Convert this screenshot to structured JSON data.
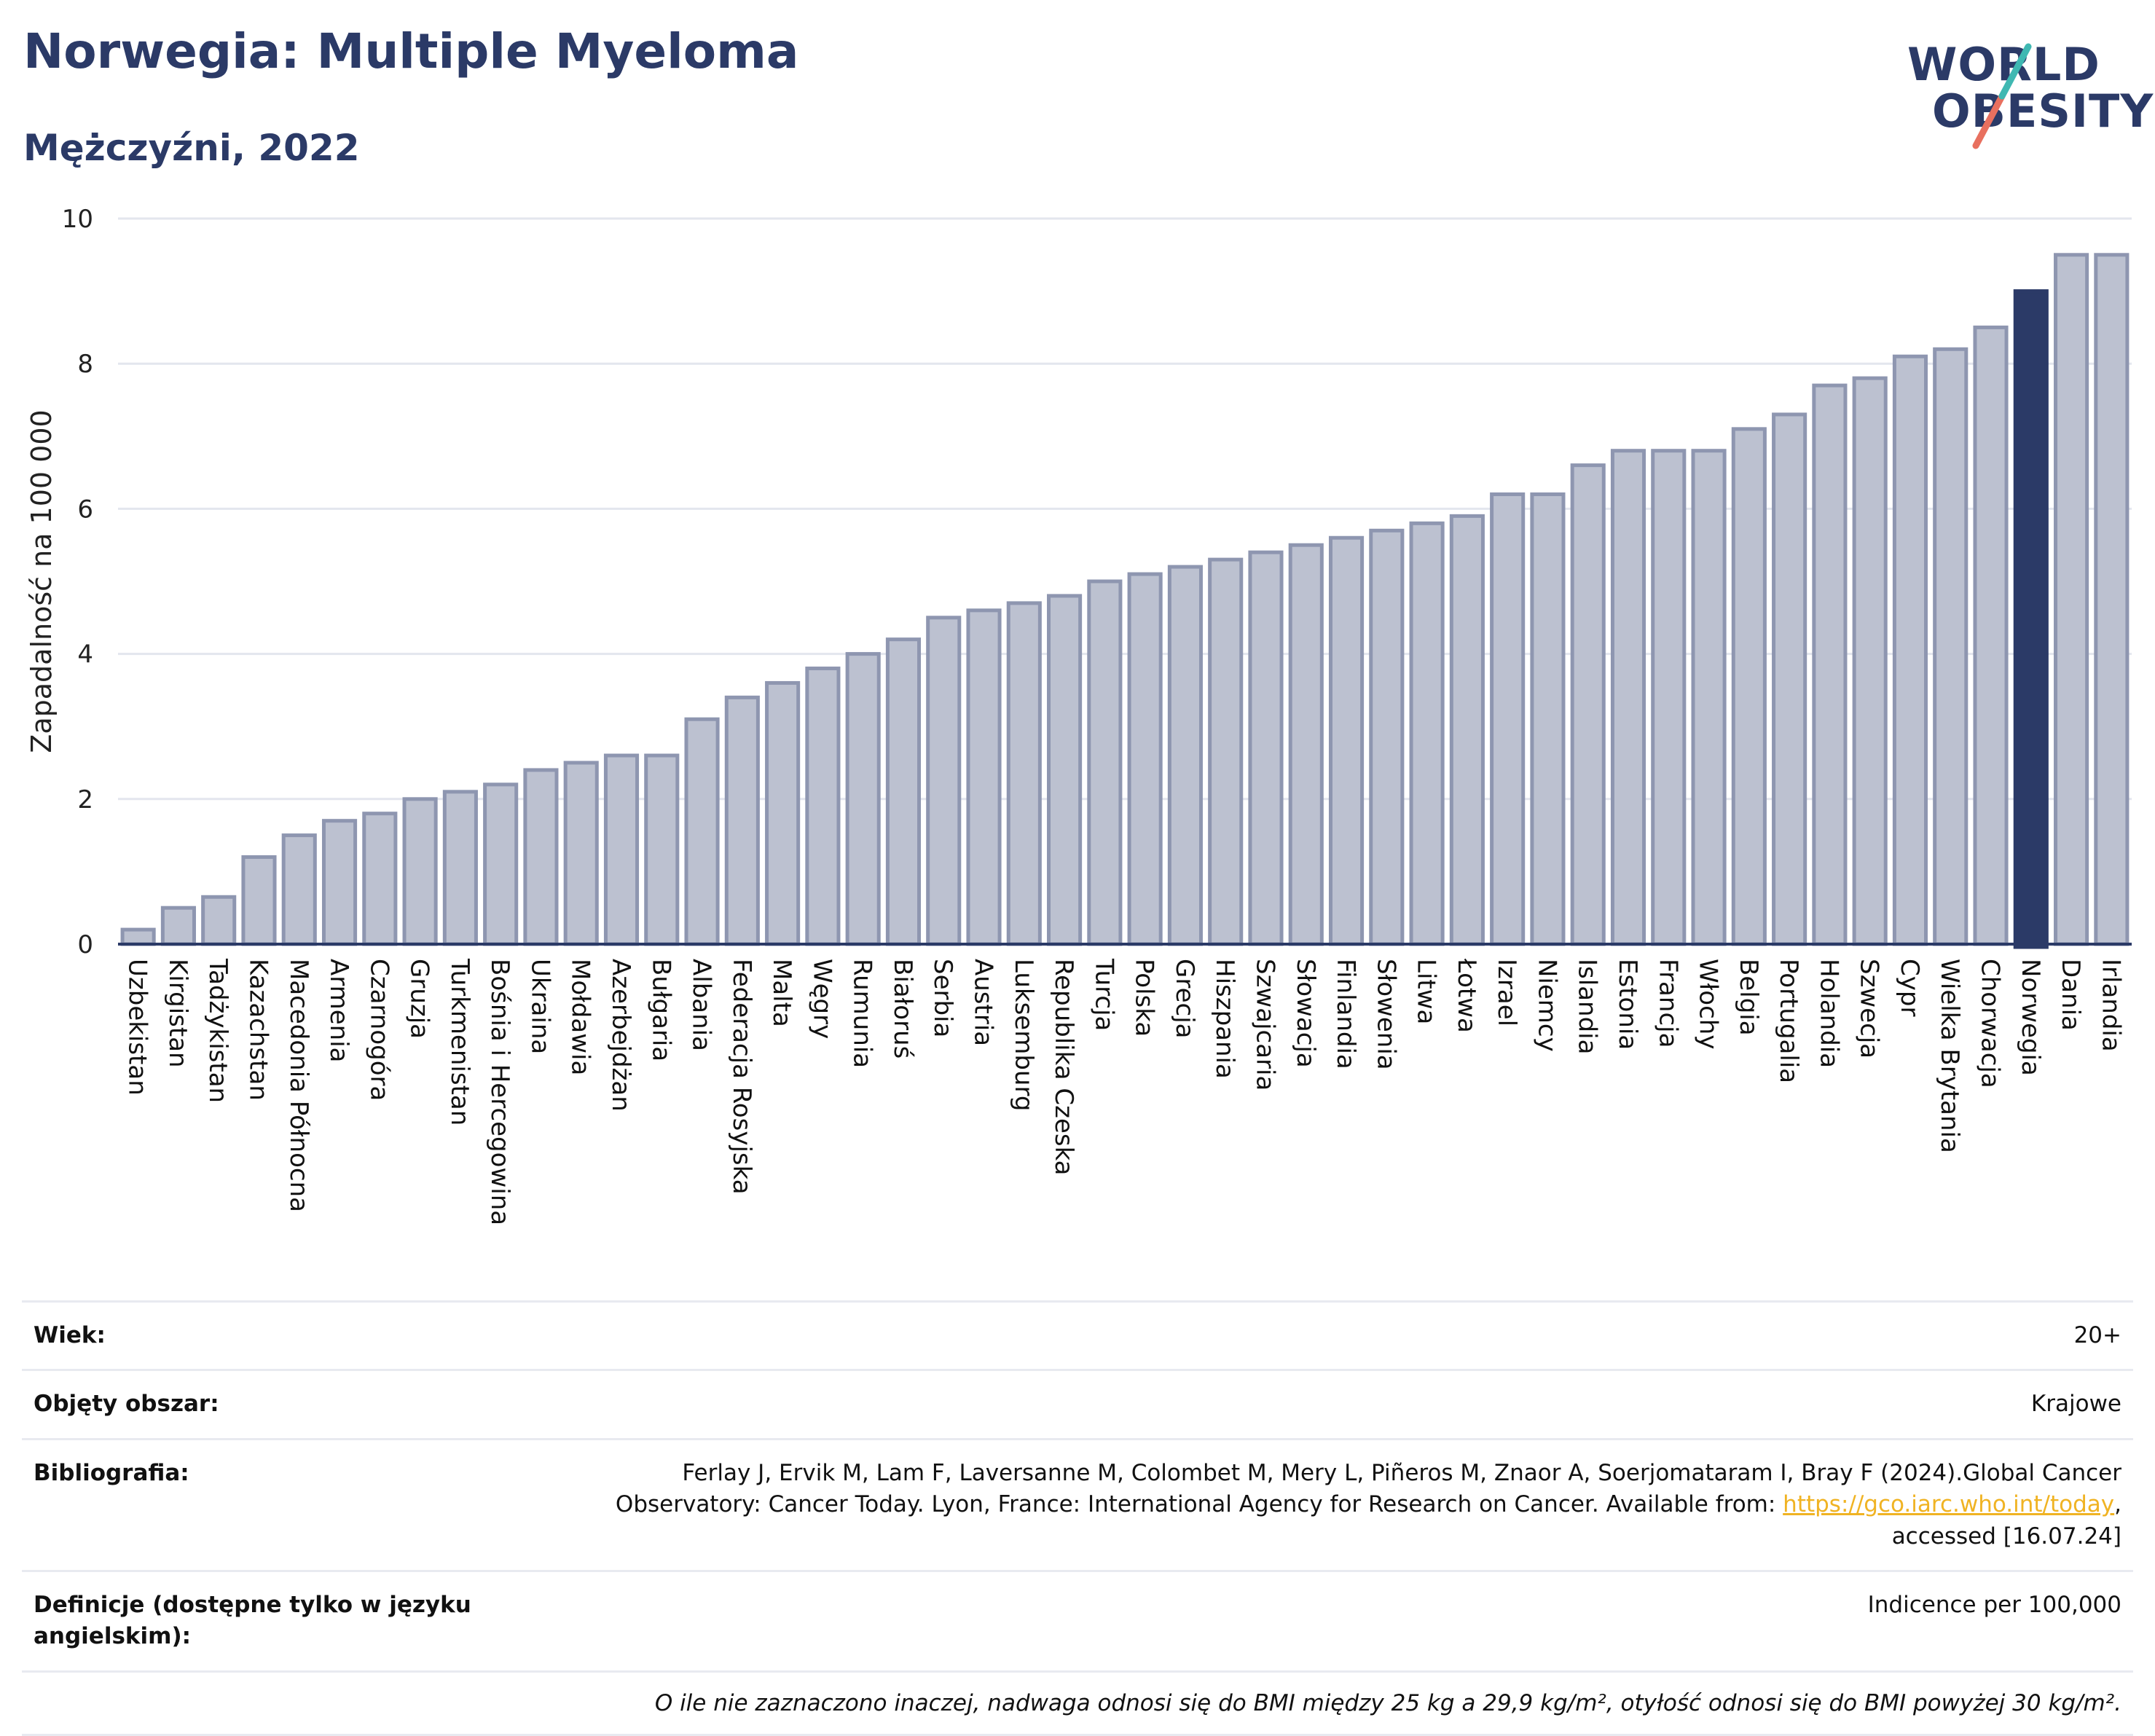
{
  "header": {
    "title": "Norwegia: Multiple Myeloma",
    "subtitle": "Mężczyźni, 2022"
  },
  "logo": {
    "line1": "WORLD",
    "line2": "OBESITY"
  },
  "chart_data": {
    "type": "bar",
    "ylabel": "Zapadalność na 100 000",
    "ylim": [
      0,
      10
    ],
    "yticks": [
      0,
      2,
      4,
      6,
      8,
      10
    ],
    "grid": true,
    "highlight": "Norwegia",
    "colors": {
      "bar": "#bcc1d0",
      "bar_stroke": "#8e96b0",
      "highlight": "#2b3a67"
    },
    "categories": [
      "Uzbekistan",
      "Kirgistan",
      "Tadżykistan",
      "Kazachstan",
      "Macedonia Północna",
      "Armenia",
      "Czarnogóra",
      "Gruzja",
      "Turkmenistan",
      "Bośnia i Hercegowina",
      "Ukraina",
      "Mołdawia",
      "Azerbejdżan",
      "Bułgaria",
      "Albania",
      "Federacja Rosyjska",
      "Malta",
      "Węgry",
      "Rumunia",
      "Białoruś",
      "Serbia",
      "Austria",
      "Luksemburg",
      "Republika Czeska",
      "Turcja",
      "Polska",
      "Grecja",
      "Hiszpania",
      "Szwajcaria",
      "Słowacja",
      "Finlandia",
      "Słowenia",
      "Litwa",
      "Łotwa",
      "Izrael",
      "Niemcy",
      "Islandia",
      "Estonia",
      "Francja",
      "Włochy",
      "Belgia",
      "Portugalia",
      "Holandia",
      "Szwecja",
      "Cypr",
      "Wielka Brytania",
      "Chorwacja",
      "Norwegia",
      "Dania",
      "Irlandia"
    ],
    "values": [
      0.2,
      0.5,
      0.65,
      1.2,
      1.5,
      1.7,
      1.8,
      2.0,
      2.1,
      2.2,
      2.4,
      2.5,
      2.6,
      2.6,
      3.1,
      3.4,
      3.6,
      3.8,
      4.0,
      4.2,
      4.5,
      4.6,
      4.7,
      4.8,
      5.0,
      5.1,
      5.2,
      5.3,
      5.4,
      5.5,
      5.6,
      5.7,
      5.8,
      5.9,
      6.2,
      6.2,
      6.6,
      6.8,
      6.8,
      6.8,
      7.1,
      7.3,
      7.7,
      7.8,
      8.1,
      8.2,
      8.5,
      9.0,
      9.5,
      9.5
    ]
  },
  "meta": {
    "age_label": "Wiek:",
    "age_value": "20+",
    "area_label": "Objęty obszar:",
    "area_value": "Krajowe",
    "bib_label": "Bibliografia:",
    "bib_text_1": "Ferlay J, Ervik M, Lam F, Laversanne M, Colombet M, Mery L, Piñeros M, Znaor A, Soerjomataram I, Bray F (2024).Global Cancer Observatory: Cancer Today. Lyon, France: International Agency for Research on Cancer. Available from: ",
    "bib_link": "https://gco.iarc.who.int/today",
    "bib_text_2": ", accessed [16.07.24]",
    "def_label": "Definicje (dostępne tylko w języku angielskim):",
    "def_value": "Indicence per 100,000",
    "note": "O ile nie zaznaczono inaczej, nadwaga odnosi się do BMI między 25 kg a 29,9 kg/m², otyłość odnosi się do BMI powyżej 30 kg/m²."
  }
}
